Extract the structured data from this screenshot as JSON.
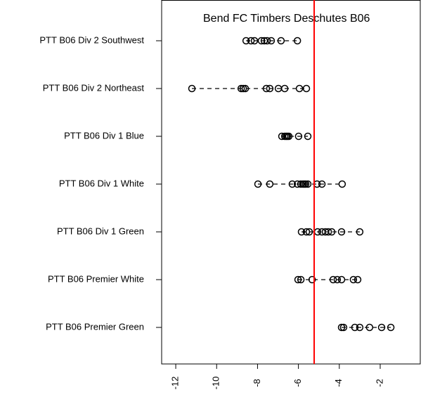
{
  "chart_data": {
    "type": "dot",
    "title": "Bend FC Timbers Deschutes B06",
    "categories": [
      "PTT B06 Div 2 Southwest",
      "PTT B06 Div 2 Northeast",
      "PTT B06 Div 1 Blue",
      "PTT B06 Div 1 White",
      "PTT B06 Div 1 Green",
      "PTT B06 Premier White",
      "PTT B06 Premier Green"
    ],
    "values": [
      [
        -8.56,
        -8.32,
        -8.15,
        -7.81,
        -7.67,
        -7.53,
        -7.33,
        -6.85,
        -6.05
      ],
      [
        -11.21,
        -8.8,
        -8.7,
        -8.6,
        -7.57,
        -7.4,
        -6.98,
        -6.67,
        -5.95,
        -5.61
      ],
      [
        -6.81,
        -6.67,
        -6.6,
        -6.54,
        -6.47,
        -5.99,
        -5.54
      ],
      [
        -7.98,
        -7.4,
        -6.3,
        -6.05,
        -5.88,
        -5.78,
        -5.71,
        -5.64,
        -5.54,
        -5.09,
        -4.85,
        -3.86
      ],
      [
        -5.85,
        -5.61,
        -5.47,
        -5.06,
        -4.85,
        -4.68,
        -4.54,
        -4.37,
        -3.89,
        -3.0
      ],
      [
        -6.02,
        -5.88,
        -5.33,
        -4.3,
        -4.1,
        -3.89,
        -3.31,
        -3.1
      ],
      [
        -3.89,
        -3.79,
        -3.24,
        -3.0,
        -2.52,
        -1.93,
        -1.48
      ]
    ],
    "color": "#000000",
    "xlim": [
      -12.69,
      -0.04
    ],
    "xticks": [
      -12,
      -10,
      -8,
      -6,
      -4,
      -2
    ],
    "reference_line": -5.23,
    "reference_color": "#ff0000"
  }
}
